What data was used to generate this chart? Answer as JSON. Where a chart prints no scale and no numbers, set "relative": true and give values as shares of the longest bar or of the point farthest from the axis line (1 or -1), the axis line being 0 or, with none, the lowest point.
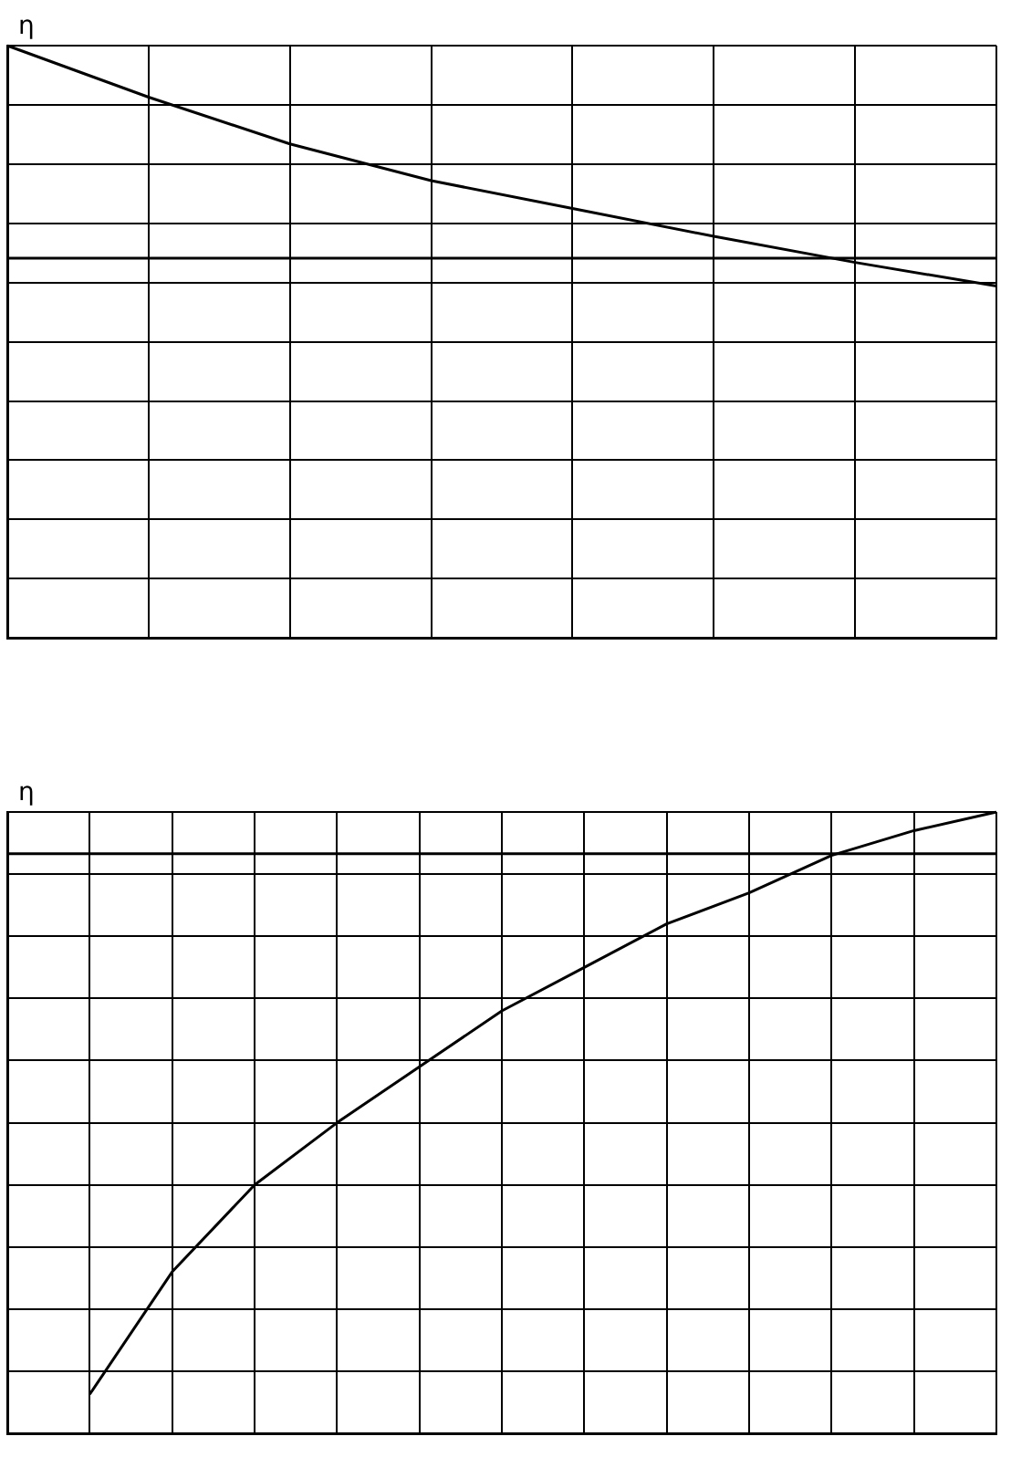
{
  "chart_data": [
    {
      "type": "line",
      "ylabel": "η",
      "relative": true,
      "categories": [
        null,
        null,
        null,
        null,
        null,
        null,
        null,
        null
      ],
      "grid": true,
      "marker": "none",
      "legend": false,
      "series": [
        {
          "color": "#000000",
          "values": [
            1,
            0.913,
            0.834,
            0.772,
            0.725,
            0.678,
            0.634,
            0.594
          ]
        }
      ],
      "ref_lines": [
        {
          "axis": "y",
          "value": 0.641,
          "color": "#000000"
        }
      ]
    },
    {
      "type": "line",
      "ylabel": "η",
      "relative": true,
      "categories": [
        null,
        null,
        null,
        null,
        null,
        null,
        null,
        null,
        null,
        null,
        null,
        null,
        null
      ],
      "grid": true,
      "marker": "none",
      "legend": false,
      "series": [
        {
          "color": "#000000",
          "values": [
            null,
            0.063,
            0.26,
            0.4,
            0.5,
            0.59,
            0.68,
            0.75,
            0.82,
            0.87,
            0.93,
            0.97,
            1
          ]
        }
      ],
      "ref_lines": [
        {
          "axis": "y",
          "value": 0.933,
          "color": "#000000"
        }
      ]
    }
  ]
}
